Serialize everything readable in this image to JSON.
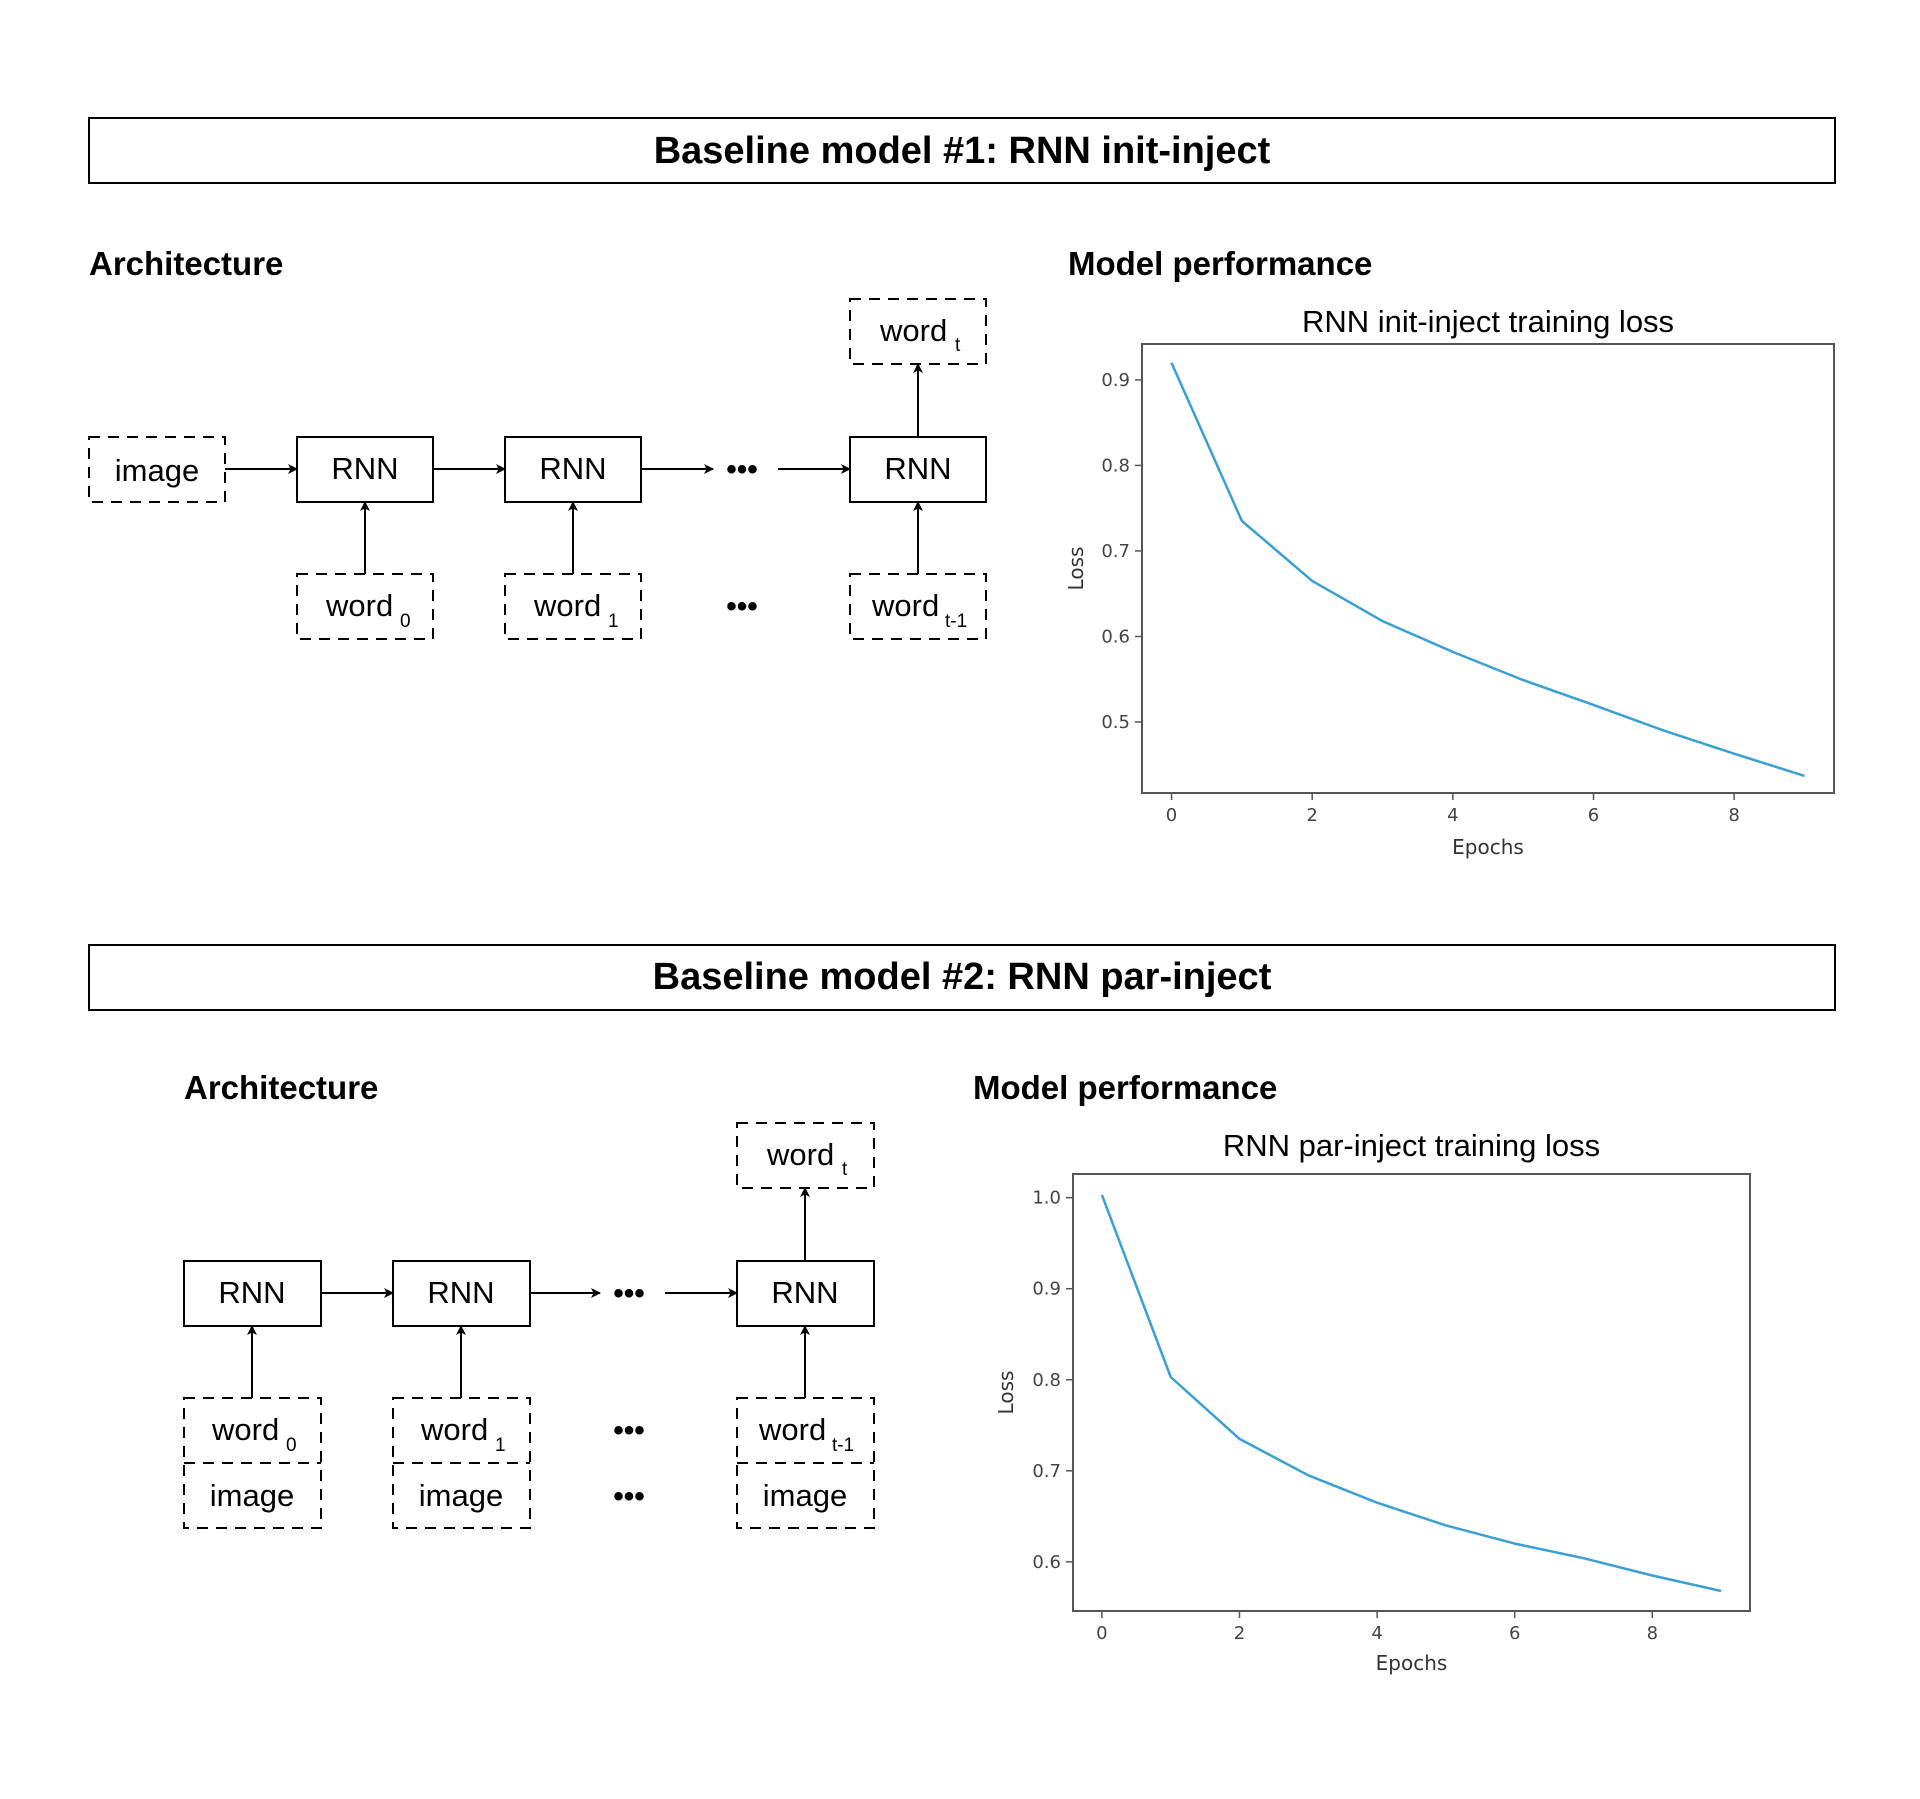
{
  "sections": [
    {
      "banner": "Baseline model #1: RNN init-inject",
      "architecture_label": "Architecture",
      "performance_label": "Model performance",
      "diagram": {
        "image": "image",
        "rnn": "RNN",
        "ellipsis": "•••",
        "word": "word",
        "subscripts": [
          "0",
          "1",
          "t-1"
        ],
        "output_subscript": "t"
      },
      "chart_data": {
        "type": "line",
        "title": "RNN init-inject training loss",
        "xlabel": "Epochs",
        "ylabel": "Loss",
        "xlim": [
          -0.42,
          9.42
        ],
        "ylim": [
          0.417,
          0.942
        ],
        "xticks": [
          0,
          2,
          4,
          6,
          8
        ],
        "yticks": [
          0.5,
          0.6,
          0.7,
          0.8,
          0.9
        ],
        "grid": false,
        "line_color": "#3a9fd3",
        "series": [
          {
            "x": [
              0,
              1,
              2,
              3,
              4,
              5,
              6,
              7,
              8,
              9
            ],
            "values": [
              0.92,
              0.735,
              0.665,
              0.618,
              0.582,
              0.549,
              0.52,
              0.49,
              0.463,
              0.437
            ]
          }
        ]
      }
    },
    {
      "banner": "Baseline model #2: RNN par-inject",
      "architecture_label": "Architecture",
      "performance_label": "Model performance",
      "diagram": {
        "image": "image",
        "rnn": "RNN",
        "ellipsis": "•••",
        "word": "word",
        "subscripts": [
          "0",
          "1",
          "t-1"
        ],
        "output_subscript": "t"
      },
      "chart_data": {
        "type": "line",
        "title": "RNN par-inject training loss",
        "xlabel": "Epochs",
        "ylabel": "Loss",
        "xlim": [
          -0.42,
          9.42
        ],
        "ylim": [
          0.546,
          1.026
        ],
        "xticks": [
          0,
          2,
          4,
          6,
          8
        ],
        "yticks": [
          0.6,
          0.7,
          0.8,
          0.9,
          1.0
        ],
        "grid": false,
        "line_color": "#3a9fd3",
        "series": [
          {
            "x": [
              0,
              1,
              2,
              3,
              4,
              5,
              6,
              7,
              8,
              9
            ],
            "values": [
              1.003,
              0.803,
              0.735,
              0.695,
              0.665,
              0.64,
              0.62,
              0.604,
              0.585,
              0.568
            ]
          }
        ]
      }
    }
  ]
}
